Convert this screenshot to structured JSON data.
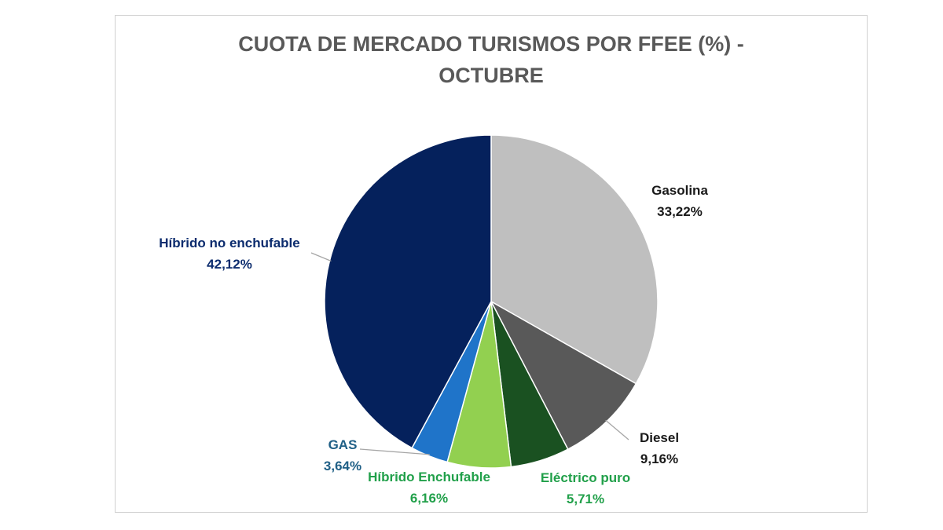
{
  "chart_data": {
    "type": "pie",
    "title_lines": [
      "CUOTA DE MERCADO TURISMOS POR FFEE (%) -",
      "OCTUBRE"
    ],
    "slices": [
      {
        "name": "Gasolina",
        "value": 33.22,
        "label": "33,22%",
        "color": "#bfbfbf",
        "label_color": "#1a1a1a"
      },
      {
        "name": "Diesel",
        "value": 9.16,
        "label": "9,16%",
        "color": "#595959",
        "label_color": "#1a1a1a"
      },
      {
        "name": "Eléctrico puro",
        "value": 5.71,
        "label": "5,71%",
        "color": "#1a5121",
        "label_color": "#21a04a"
      },
      {
        "name": "Híbrido Enchufable",
        "value": 6.16,
        "label": "6,16%",
        "color": "#92d050",
        "label_color": "#21a04a"
      },
      {
        "name": "GAS",
        "value": 3.64,
        "label": "3,64%",
        "color": "#1f74c9",
        "label_color": "#1f5f86"
      },
      {
        "name": "Híbrido no enchufable",
        "value": 42.12,
        "label": "42,12%",
        "color": "#05215c",
        "label_color": "#0c2c6e"
      }
    ]
  }
}
